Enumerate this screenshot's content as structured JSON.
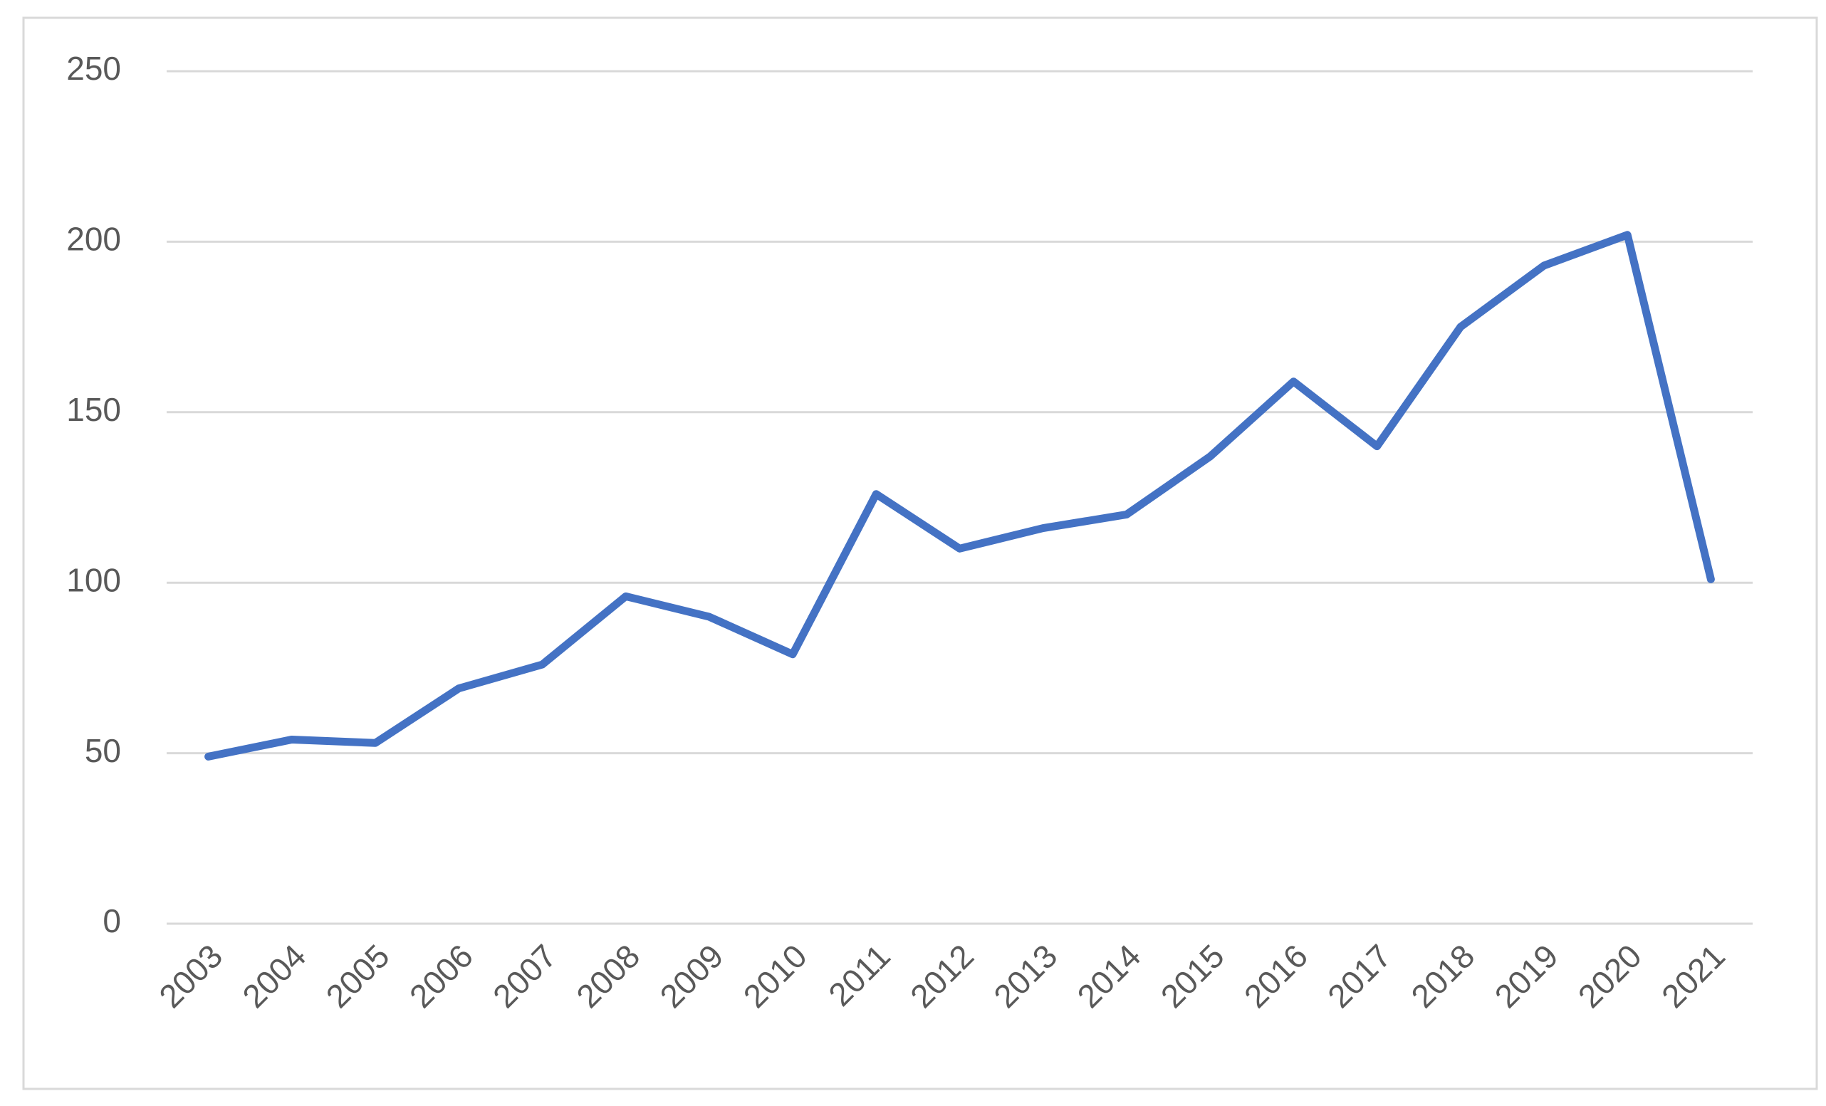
{
  "chart_data": {
    "type": "line",
    "categories": [
      "2003",
      "2004",
      "2005",
      "2006",
      "2007",
      "2008",
      "2009",
      "2010",
      "2011",
      "2012",
      "2013",
      "2014",
      "2015",
      "2016",
      "2017",
      "2018",
      "2019",
      "2020",
      "2021"
    ],
    "series": [
      {
        "color": "#4472c4",
        "values": [
          49,
          54,
          53,
          69,
          76,
          96,
          90,
          79,
          126,
          110,
          116,
          120,
          137,
          159,
          140,
          175,
          193,
          202,
          101
        ]
      }
    ],
    "ylim": [
      0,
      250
    ],
    "yticks": [
      0,
      50,
      100,
      150,
      200,
      250
    ],
    "grid": true
  }
}
